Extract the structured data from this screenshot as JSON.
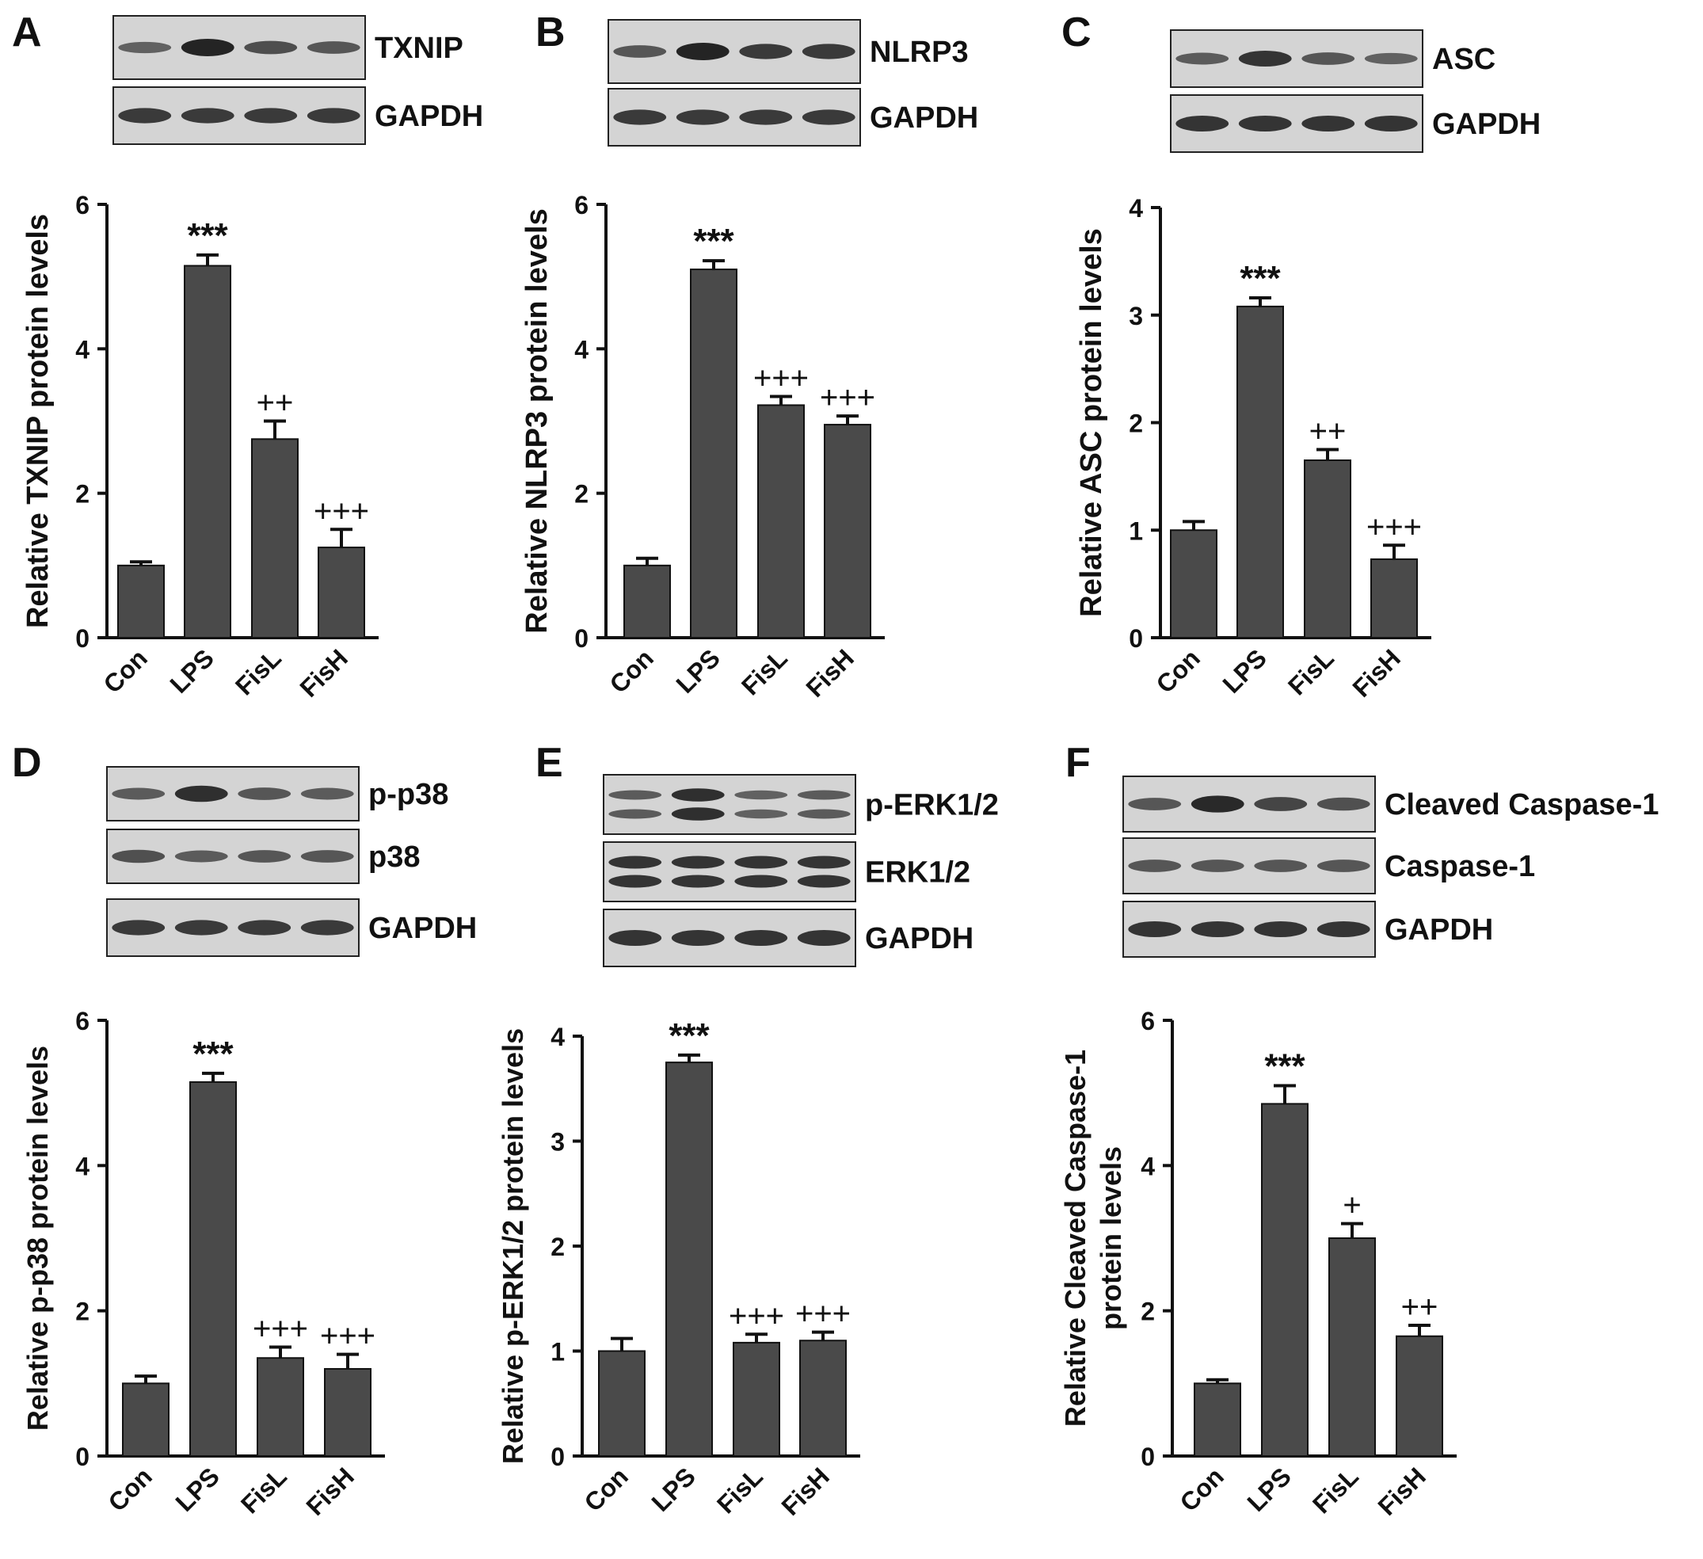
{
  "figure": {
    "panels": [
      {
        "letter": "A",
        "blot_rows": [
          {
            "label": "TXNIP",
            "bands": [
              0.45,
              1.0,
              0.62,
              0.55
            ]
          },
          {
            "label": "GAPDH",
            "bands": [
              0.8,
              0.8,
              0.8,
              0.8
            ]
          }
        ]
      },
      {
        "letter": "B",
        "blot_rows": [
          {
            "label": "NLRP3",
            "bands": [
              0.55,
              1.0,
              0.8,
              0.8
            ]
          },
          {
            "label": "GAPDH",
            "bands": [
              0.8,
              0.8,
              0.8,
              0.8
            ]
          }
        ]
      },
      {
        "letter": "C",
        "blot_rows": [
          {
            "label": "ASC",
            "bands": [
              0.5,
              0.85,
              0.55,
              0.45
            ]
          },
          {
            "label": "GAPDH",
            "bands": [
              0.85,
              0.85,
              0.85,
              0.85
            ]
          }
        ]
      },
      {
        "letter": "D",
        "blot_rows": [
          {
            "label": "p-p38",
            "bands": [
              0.5,
              0.9,
              0.55,
              0.5
            ]
          },
          {
            "label": "p38",
            "bands": [
              0.6,
              0.5,
              0.55,
              0.55
            ]
          },
          {
            "label": "GAPDH",
            "bands": [
              0.8,
              0.8,
              0.8,
              0.8
            ]
          }
        ]
      },
      {
        "letter": "E",
        "blot_rows": [
          {
            "label": "p-ERK1/2",
            "bands": [
              0.5,
              0.9,
              0.45,
              0.5
            ],
            "doublet": true
          },
          {
            "label": "ERK1/2",
            "bands": [
              0.85,
              0.85,
              0.85,
              0.85
            ],
            "doublet": true
          },
          {
            "label": "GAPDH",
            "bands": [
              0.85,
              0.85,
              0.85,
              0.85
            ]
          }
        ]
      },
      {
        "letter": "F",
        "blot_rows": [
          {
            "label": "Cleaved Caspase-1",
            "bands": [
              0.55,
              0.95,
              0.7,
              0.6
            ]
          },
          {
            "label": "Caspase-1",
            "bands": [
              0.55,
              0.55,
              0.55,
              0.55
            ]
          },
          {
            "label": "GAPDH",
            "bands": [
              0.85,
              0.85,
              0.85,
              0.85
            ]
          }
        ]
      }
    ]
  },
  "chart_data": [
    {
      "type": "bar",
      "panel": "A",
      "categories": [
        "Con",
        "LPS",
        "FisL",
        "FisH"
      ],
      "values": [
        1.0,
        5.15,
        2.75,
        1.25
      ],
      "errors": [
        0.05,
        0.15,
        0.25,
        0.25
      ],
      "significance": [
        "",
        "***",
        "++",
        "+++"
      ],
      "ylabel": "Relative TXNIP protein levels",
      "ylim": [
        0,
        6
      ],
      "yticks": [
        "0",
        "2",
        "4",
        "6"
      ],
      "bar_color": "#4a4a4a"
    },
    {
      "type": "bar",
      "panel": "B",
      "categories": [
        "Con",
        "LPS",
        "FisL",
        "FisH"
      ],
      "values": [
        1.0,
        5.1,
        3.22,
        2.95
      ],
      "errors": [
        0.1,
        0.12,
        0.12,
        0.12
      ],
      "significance": [
        "",
        "***",
        "+++",
        "+++"
      ],
      "ylabel": "Relative NLRP3 protein levels",
      "ylim": [
        0,
        6
      ],
      "yticks": [
        "0",
        "2",
        "4",
        "6"
      ],
      "bar_color": "#4a4a4a"
    },
    {
      "type": "bar",
      "panel": "C",
      "categories": [
        "Con",
        "LPS",
        "FisL",
        "FisH"
      ],
      "values": [
        1.0,
        3.08,
        1.65,
        0.73
      ],
      "errors": [
        0.08,
        0.08,
        0.1,
        0.13
      ],
      "significance": [
        "",
        "***",
        "++",
        "+++"
      ],
      "ylabel": "Relative ASC protein levels",
      "ylim": [
        0,
        4
      ],
      "yticks": [
        "0",
        "1",
        "2",
        "3",
        "4"
      ],
      "bar_color": "#4a4a4a"
    },
    {
      "type": "bar",
      "panel": "D",
      "categories": [
        "Con",
        "LPS",
        "FisL",
        "FisH"
      ],
      "values": [
        1.0,
        5.15,
        1.35,
        1.2
      ],
      "errors": [
        0.1,
        0.12,
        0.15,
        0.2
      ],
      "significance": [
        "",
        "***",
        "+++",
        "+++"
      ],
      "ylabel": "Relative p-p38 protein levels",
      "ylim": [
        0,
        6
      ],
      "yticks": [
        "0",
        "2",
        "4",
        "6"
      ],
      "bar_color": "#4a4a4a"
    },
    {
      "type": "bar",
      "panel": "E",
      "categories": [
        "Con",
        "LPS",
        "FisL",
        "FisH"
      ],
      "values": [
        1.0,
        3.75,
        1.08,
        1.1
      ],
      "errors": [
        0.12,
        0.07,
        0.08,
        0.08
      ],
      "significance": [
        "",
        "***",
        "+++",
        "+++"
      ],
      "ylabel": "Relative p-ERK1/2 protein levels",
      "ylim": [
        0,
        4
      ],
      "yticks": [
        "0",
        "1",
        "2",
        "3",
        "4"
      ],
      "bar_color": "#4a4a4a"
    },
    {
      "type": "bar",
      "panel": "F",
      "categories": [
        "Con",
        "LPS",
        "FisL",
        "FisH"
      ],
      "values": [
        1.0,
        4.85,
        3.0,
        1.65
      ],
      "errors": [
        0.05,
        0.25,
        0.2,
        0.15
      ],
      "significance": [
        "",
        "***",
        "+",
        "++"
      ],
      "ylabel": "Relative Cleaved Caspase-1 protein levels",
      "ylabel_lines": [
        "Relative Cleaved Caspase-1",
        "protein levels"
      ],
      "ylim": [
        0,
        6
      ],
      "yticks": [
        "0",
        "2",
        "4",
        "6"
      ],
      "bar_color": "#4a4a4a"
    }
  ]
}
